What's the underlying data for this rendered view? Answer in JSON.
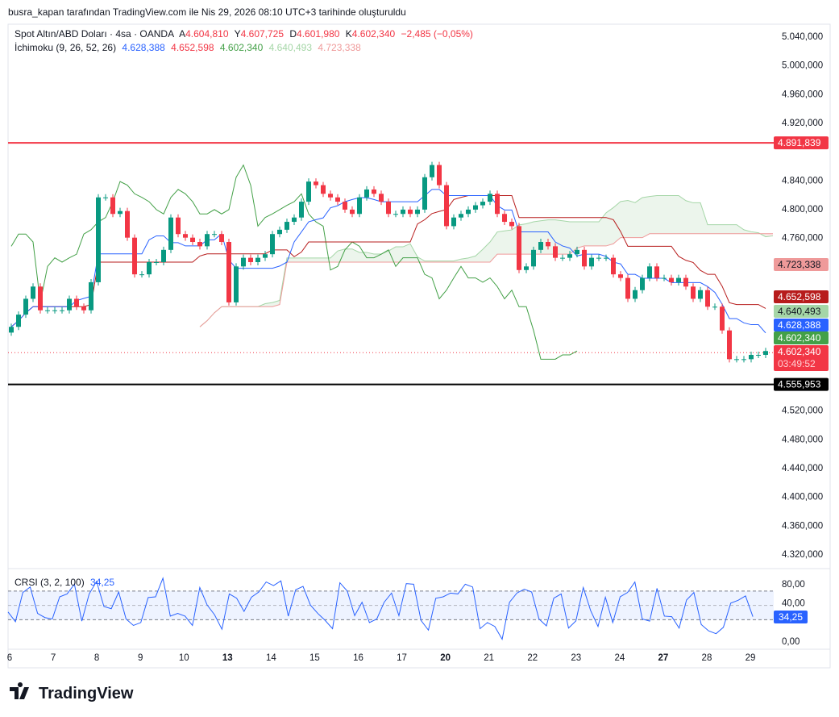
{
  "header": {
    "attribution": "busra_kapan tarafından TradingView.com ile Nis 29, 2026 08:10 UTC+3 tarihinde oluşturuldu"
  },
  "legend": {
    "symbol": "Spot Altın/ABD Doları · 4sa · OANDA",
    "open_label": "A",
    "open": "4.604,810",
    "high_label": "Y",
    "high": "4.607,725",
    "low_label": "D",
    "low": "4.601,980",
    "close_label": "K",
    "close": "4.602,340",
    "change": "−2,485 (−0,05%)",
    "ichimoku_title": "İchimoku (9, 26, 52, 26)",
    "ichimoku_values": [
      "4.628,388",
      "4.652,598",
      "4.602,340",
      "4.640,493",
      "4.723,338"
    ]
  },
  "colors": {
    "up": "#089981",
    "down": "#f23645",
    "conversion": "#2962ff",
    "base": "#b71c1c",
    "lagging": "#43a047",
    "span_a": "#a5d6a7",
    "span_b": "#ef9a9a",
    "crsi": "#2962ff"
  },
  "price_axis": {
    "ticks": [
      {
        "v": 5040,
        "label": "5.040,000"
      },
      {
        "v": 5000,
        "label": "5.000,000"
      },
      {
        "v": 4960,
        "label": "4.960,000"
      },
      {
        "v": 4920,
        "label": "4.920,000"
      },
      {
        "v": 4840,
        "label": "4.840,000"
      },
      {
        "v": 4800,
        "label": "4.800,000"
      },
      {
        "v": 4760,
        "label": "4.760,000"
      },
      {
        "v": 4520,
        "label": "4.520,000"
      },
      {
        "v": 4480,
        "label": "4.480,000"
      },
      {
        "v": 4440,
        "label": "4.440,000"
      },
      {
        "v": 4400,
        "label": "4.400,000"
      },
      {
        "v": 4360,
        "label": "4.360,000"
      },
      {
        "v": 4320,
        "label": "4.320,000"
      }
    ],
    "range": [
      4320,
      5040
    ]
  },
  "price_labels": [
    {
      "v": 4891.839,
      "label": "4.891,839",
      "bg": "#f23645",
      "fg": "#ffffff"
    },
    {
      "v": 4723.338,
      "label": "4.723,338",
      "bg": "#ef9a9a",
      "fg": "#131722"
    },
    {
      "v": 4652.598,
      "label": "4.652,598",
      "bg": "#b71c1c",
      "fg": "#ffffff"
    },
    {
      "v": 4640.493,
      "label": "4.640,493",
      "bg": "#a5d6a7",
      "fg": "#131722"
    },
    {
      "v": 4628.388,
      "label": "4.628,388",
      "bg": "#2962ff",
      "fg": "#ffffff"
    },
    {
      "v": 4602.34,
      "label": "4.602,340",
      "bg": "#43a047",
      "fg": "#ffffff"
    }
  ],
  "current_price": {
    "v": 4602.34,
    "label": "4.602,340",
    "countdown": "03:49:52"
  },
  "horizontal_lines": [
    {
      "v": 4891.839,
      "color": "#f23645"
    },
    {
      "v": 4555.953,
      "color": "#000000",
      "label": "4.555,953"
    }
  ],
  "time_axis": [
    "6",
    "7",
    "8",
    "9",
    "10",
    "13",
    "14",
    "15",
    "16",
    "17",
    "20",
    "21",
    "22",
    "23",
    "24",
    "27",
    "28",
    "29"
  ],
  "crsi": {
    "title": "CRSI (3, 2, 100)",
    "value": "34,25",
    "axis": [
      "80,00",
      "40,00",
      "0,00"
    ],
    "upper_band": 70,
    "middle": 50,
    "lower_band": 30,
    "values": [
      40.8,
      27.2,
      68,
      75.7,
      38.8,
      33,
      31,
      62,
      66,
      79.6,
      28,
      66,
      83.5,
      48.5,
      45.4,
      68.7,
      31,
      22,
      26,
      61,
      62,
      88,
      35,
      38.8,
      35,
      22,
      75,
      50.5,
      36.9,
      16.7,
      66,
      60,
      41.6,
      61.4,
      68.7,
      82.7,
      77.7,
      84.3,
      35,
      71.8,
      76.5,
      50.5,
      38.8,
      29,
      17.5,
      81.6,
      70,
      35.7,
      54.4,
      26,
      31,
      54.4,
      67.2,
      35.7,
      80.4,
      79.6,
      29,
      15.5,
      60,
      62,
      67.2,
      66,
      79.6,
      75.7,
      17.5,
      26,
      20.6,
      2.7,
      54.4,
      67.2,
      72.6,
      68.7,
      31,
      21.4,
      60,
      66,
      18.3,
      28.3,
      75,
      42.7,
      20.6,
      61.4,
      26,
      62,
      68,
      82.7,
      31,
      28,
      73.8,
      35,
      34.2,
      18.3,
      57.5,
      68,
      23.3,
      14.4,
      10.5,
      19.4,
      53.2,
      57.1,
      63.3,
      34.25
    ]
  },
  "chart_data": {
    "type": "candlestick",
    "title": "Spot Altın/ABD Doları · 4sa · OANDA",
    "indicators": [
      "İchimoku (9, 26, 52, 26)",
      "CRSI (3, 2, 100)"
    ],
    "ylim": [
      4320,
      5040
    ],
    "grid": false,
    "close": [
      4636,
      4653,
      4675,
      4692,
      4659,
      4659,
      4659,
      4659,
      4675,
      4664,
      4659,
      4698,
      4816,
      4816,
      4793,
      4797,
      4760,
      4709,
      4709,
      4726,
      4726,
      4743,
      4788,
      4765,
      4760,
      4754,
      4748,
      4765,
      4765,
      4754,
      4670,
      4720,
      4732,
      4726,
      4732,
      4737,
      4765,
      4771,
      4782,
      4788,
      4810,
      4838,
      4833,
      4821,
      4816,
      4810,
      4799,
      4793,
      4816,
      4827,
      4821,
      4810,
      4793,
      4793,
      4799,
      4793,
      4799,
      4844,
      4861,
      4833,
      4776,
      4788,
      4793,
      4799,
      4805,
      4810,
      4821,
      4793,
      4782,
      4776,
      4715,
      4720,
      4743,
      4754,
      4748,
      4732,
      4732,
      4737,
      4743,
      4720,
      4732,
      4732,
      4732,
      4709,
      4704,
      4675,
      4687,
      4704,
      4720,
      4704,
      4704,
      4698,
      4704,
      4692,
      4675,
      4687,
      4664,
      4664,
      4631,
      4591,
      4591,
      4591,
      4597,
      4597,
      4602.34
    ]
  },
  "footer": {
    "brand": "TradingView"
  }
}
